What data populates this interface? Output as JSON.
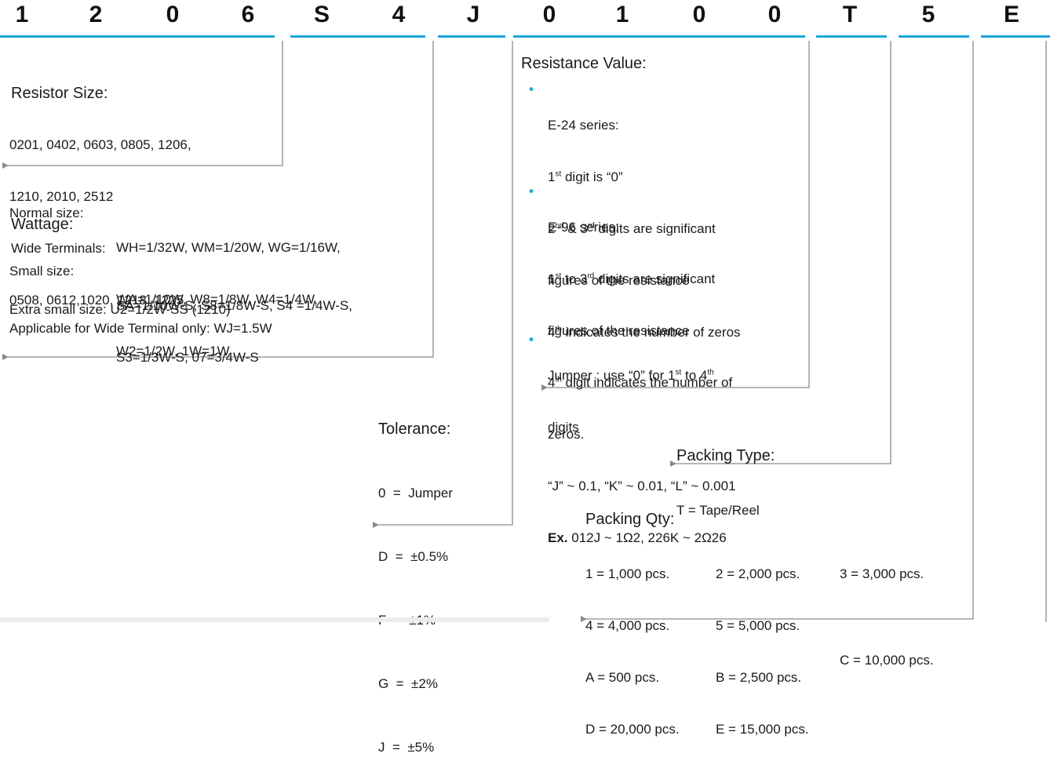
{
  "code_letters": [
    "1",
    "2",
    "0",
    "6",
    "S",
    "4",
    "J",
    "0",
    "1",
    "0",
    "0",
    "T",
    "5",
    "E"
  ],
  "resistor_size": {
    "title": "Resistor Size:",
    "lines": [
      "0201, 0402, 0603, 0805, 1206,",
      "1210, 2010, 2512",
      "Wide Terminals:",
      "0508, 0612,1020, 1218, 1225"
    ]
  },
  "wattage": {
    "title": "Wattage:",
    "normal_label": "Normal size:",
    "normal_lines": [
      "WH=1/32W, WM=1/20W, WG=1/16W,",
      "WA=1/10W, W8=1/8W, W4=1/4W,",
      "W2=1/2W, 1W=1W"
    ],
    "small_label": "Small size:",
    "small_lines": [
      "SA=1/10W-S, S8=1/8W-S, S4 =1/4W-S,",
      "S3=1/3W-S, 07=3/4W-S"
    ],
    "extra_small": "Extra small size: U2=1/2W-SS (1210)",
    "wide_terminal": "Applicable for Wide Terminal only: WJ=1.5W"
  },
  "tolerance": {
    "title": "Tolerance:",
    "lines": [
      "0  =  Jumper",
      "D  =  ±0.5%",
      "F  =  ±1%",
      "G  =  ±2%",
      "J  =  ±5%"
    ]
  },
  "resistance": {
    "title": "Resistance Value:",
    "e24_title": "E-24 series:",
    "e24_l1_a": "1",
    "e24_l1_sup": "st",
    "e24_l1_b": " digit is “0”",
    "e24_l2_a": "2",
    "e24_l2_sup1": "nd",
    "e24_l2_b": " & 3",
    "e24_l2_sup2": "rd",
    "e24_l2_c": " digits are significant",
    "e24_l3": "figures of the resistance",
    "e24_l4_a": "4",
    "e24_l4_sup": "th",
    "e24_l4_b": " indicates the number of zeros",
    "e96_title": "E-96 series:",
    "e96_l1_a": "1",
    "e96_l1_sup1": "st",
    "e96_l1_b": " to 3",
    "e96_l1_sup2": "rd",
    "e96_l1_c": " digits are significant",
    "e96_l2": "figures of the resistance",
    "e96_l3_a": "4",
    "e96_l3_sup": "th",
    "e96_l3_b": " digit indicates the number of",
    "e96_l4": "zeros.",
    "e96_l5": "“J” ~ 0.1, “K” ~ 0.01, “L” ~ 0.001",
    "e96_ex_bold": "Ex.",
    "e96_ex_text": " 012J ~ 1Ω2, 226K ~ 2Ω26",
    "jumper_a": "Jumper : use “0” for 1",
    "jumper_sup1": "st",
    "jumper_b": " to 4",
    "jumper_sup2": "th",
    "jumper_l2": "digits",
    "bullet": "•"
  },
  "packing_type": {
    "title": "Packing Type:",
    "lines": [
      "T = Tape/Reel"
    ]
  },
  "packing_qty": {
    "title": "Packing Qty:",
    "col1": [
      "1 = 1,000 pcs.",
      "4 = 4,000 pcs.",
      "A = 500 pcs.",
      "D = 20,000 pcs."
    ],
    "col2": [
      "2 = 2,000 pcs.",
      "5 = 5,000 pcs.",
      "B = 2,500 pcs.",
      "E = 15,000 pcs."
    ],
    "col3": [
      "3 = 3,000 pcs.",
      "",
      "C = 10,000 pcs.",
      ""
    ]
  },
  "colors": {
    "accent": "#1ba8d8",
    "line": "#8a8a8a",
    "text": "#1a1a1a"
  }
}
